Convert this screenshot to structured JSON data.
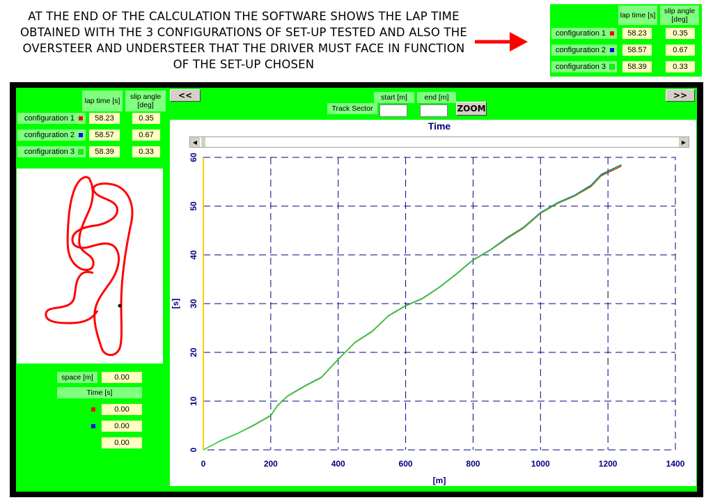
{
  "caption": "AT THE END OF THE CALCULATION THE SOFTWARE SHOWS THE LAP TIME OBTAINED WITH THE 3 CONFIGURATIONS OF SET-UP TESTED AND ALSO THE OVERSTEER AND UNDERSTEER THAT THE DRIVER MUST FACE IN FUNCTION OF THE SET-UP CHOSEN",
  "results": {
    "lap_time_header": "lap time [s]",
    "slip_angle_header": "slip angle [deg]",
    "rows": [
      {
        "label": "configuration 1",
        "color": "#ff0000",
        "lap_time": "58.23",
        "slip_angle": "0.35"
      },
      {
        "label": "configuration 2",
        "color": "#0000ff",
        "lap_time": "58.57",
        "slip_angle": "0.67"
      },
      {
        "label": "configuration 3",
        "color": "#00ff00",
        "lap_time": "58.39",
        "slip_angle": "0.33"
      }
    ]
  },
  "nav": {
    "prev_label": "<<",
    "next_label": ">>"
  },
  "sector": {
    "label": "Track Sector",
    "start_label": "start [m]",
    "end_label": "end [m]",
    "zoom_label": "ZOOM"
  },
  "readout": {
    "space_label": "space [m]",
    "space_value": "0.00",
    "time_label": "Time [s]",
    "values": [
      "0.00",
      "0.00",
      "0.00"
    ]
  },
  "chart_data": {
    "type": "line",
    "title": "Time",
    "xlabel": "[m]",
    "ylabel": "[s]",
    "xlim": [
      0,
      1400
    ],
    "ylim": [
      0,
      60
    ],
    "xticks": [
      0,
      200,
      400,
      600,
      800,
      1000,
      1200,
      1400
    ],
    "yticks": [
      0,
      10,
      20,
      30,
      40,
      50,
      60
    ],
    "grid": true,
    "x": [
      0,
      50,
      100,
      150,
      200,
      220,
      250,
      300,
      350,
      400,
      450,
      500,
      550,
      600,
      650,
      700,
      750,
      800,
      850,
      900,
      950,
      1000,
      1050,
      1100,
      1150,
      1180,
      1240
    ],
    "series": [
      {
        "color": "#ff0000",
        "values": [
          0,
          1.8,
          3.3,
          5.0,
          7.0,
          9.0,
          11.0,
          13.0,
          14.8,
          18.5,
          22.0,
          24.2,
          27.5,
          29.5,
          31.0,
          33.3,
          36.0,
          38.9,
          40.9,
          43.3,
          45.5,
          48.5,
          50.5,
          52.0,
          54.0,
          56.2,
          58.2
        ]
      },
      {
        "color": "#0000ff",
        "values": [
          0,
          1.85,
          3.35,
          5.1,
          7.1,
          9.1,
          11.1,
          13.1,
          14.9,
          18.6,
          22.1,
          24.3,
          27.6,
          29.6,
          31.1,
          33.4,
          36.1,
          39.0,
          41.0,
          43.5,
          45.7,
          48.7,
          50.7,
          52.2,
          54.3,
          56.5,
          58.5
        ]
      },
      {
        "color": "#00ff00",
        "values": [
          0,
          1.82,
          3.32,
          5.05,
          7.05,
          9.05,
          11.05,
          13.05,
          14.85,
          18.55,
          22.05,
          24.25,
          27.55,
          29.55,
          31.05,
          33.35,
          36.05,
          38.95,
          40.95,
          43.4,
          45.6,
          48.6,
          50.6,
          52.1,
          54.15,
          56.35,
          58.4
        ]
      }
    ]
  }
}
